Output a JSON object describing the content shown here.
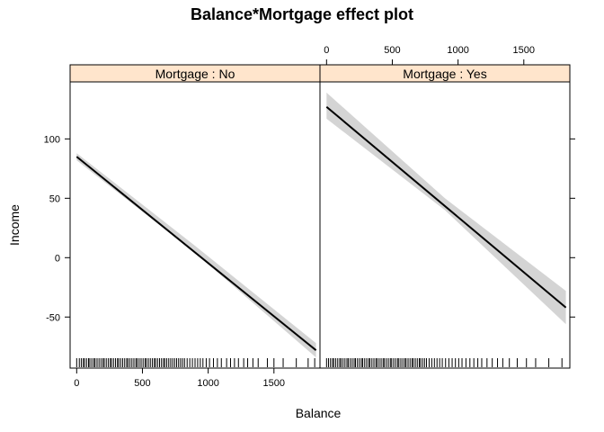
{
  "chart_data": {
    "type": "line",
    "title": "Balance*Mortgage effect plot",
    "xlabel": "Balance",
    "ylabel": "Income",
    "xlim": [
      -50,
      1850
    ],
    "ylim": [
      -93,
      148
    ],
    "x_ticks": [
      0,
      500,
      1000,
      1500
    ],
    "y_ticks": [
      -50,
      0,
      50,
      100
    ],
    "x_tick_labels": [
      "0",
      "500",
      "1000",
      "1500"
    ],
    "y_tick_labels": [
      "-50",
      "0",
      "50",
      "100"
    ],
    "panels": [
      {
        "strip": "Mortgage : No",
        "strip_color": "#ffe5cc",
        "x_ticks_at": "bottom",
        "x_range": [
          0,
          1820
        ],
        "fit": {
          "x": [
            0,
            1820
          ],
          "y": [
            85,
            -78
          ]
        },
        "band": {
          "x": [
            0,
            900,
            1820
          ],
          "lower": [
            82,
            4,
            -84
          ],
          "upper": [
            88,
            10,
            -72
          ]
        },
        "rug": [
          0,
          20,
          35,
          50,
          60,
          75,
          90,
          100,
          115,
          130,
          140,
          155,
          170,
          185,
          200,
          210,
          225,
          240,
          255,
          265,
          280,
          295,
          310,
          320,
          335,
          350,
          365,
          380,
          390,
          405,
          420,
          435,
          450,
          460,
          475,
          490,
          505,
          520,
          530,
          545,
          560,
          575,
          590,
          600,
          615,
          630,
          645,
          660,
          670,
          685,
          700,
          715,
          730,
          745,
          760,
          775,
          790,
          805,
          820,
          840,
          860,
          880,
          900,
          920,
          940,
          960,
          985,
          1010,
          1040,
          1070,
          1100,
          1140,
          1170,
          1200,
          1230,
          1270,
          1300,
          1340,
          1380,
          1450,
          1500,
          1570,
          1670,
          1760,
          1810
        ]
      },
      {
        "strip": "Mortgage : Yes",
        "strip_color": "#ffe5cc",
        "x_ticks_at": "top",
        "x_range": [
          0,
          1820
        ],
        "fit": {
          "x": [
            0,
            1820
          ],
          "y": [
            127,
            -42
          ]
        },
        "band": {
          "x": [
            0,
            900,
            1820
          ],
          "lower": [
            117,
            40,
            -56
          ],
          "upper": [
            139,
            50,
            -28
          ]
        },
        "rug": [
          0,
          15,
          30,
          45,
          55,
          70,
          85,
          100,
          110,
          125,
          140,
          155,
          165,
          180,
          195,
          210,
          220,
          235,
          250,
          265,
          275,
          290,
          305,
          320,
          330,
          345,
          360,
          375,
          385,
          400,
          415,
          430,
          440,
          455,
          470,
          485,
          495,
          510,
          525,
          540,
          550,
          565,
          580,
          595,
          605,
          620,
          635,
          650,
          660,
          675,
          690,
          705,
          715,
          730,
          745,
          760,
          780,
          800,
          820,
          840,
          860,
          880,
          905,
          930,
          955,
          980,
          1005,
          1030,
          1060,
          1090,
          1120,
          1150,
          1180,
          1220,
          1260,
          1300,
          1340,
          1390,
          1450,
          1520,
          1590,
          1690,
          1790
        ]
      }
    ],
    "colors": {
      "line": "#000000",
      "band": "#d4d4d4",
      "strip": "#ffe5cc",
      "frame": "#000000"
    }
  }
}
